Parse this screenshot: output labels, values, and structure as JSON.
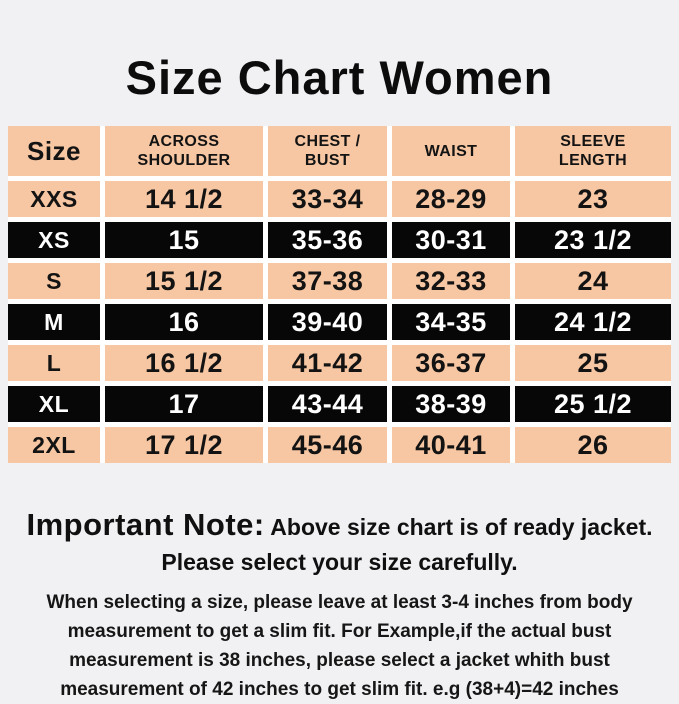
{
  "page": {
    "title": "Size Chart Women",
    "background_color": "#f1f1f4",
    "peach_color": "#f7c7a3",
    "dark_row_color": "#070707"
  },
  "table": {
    "columns": [
      "Size",
      "ACROSS SHOULDER",
      "CHEST / BUST",
      "WAIST",
      "SLEEVE LENGTH"
    ],
    "rows": [
      {
        "variant": "peach",
        "cells": [
          "XXS",
          "14 1/2",
          "33-34",
          "28-29",
          "23"
        ]
      },
      {
        "variant": "black",
        "cells": [
          "XS",
          "15",
          "35-36",
          "30-31",
          "23 1/2"
        ]
      },
      {
        "variant": "peach",
        "cells": [
          "S",
          "15 1/2",
          "37-38",
          "32-33",
          "24"
        ]
      },
      {
        "variant": "black",
        "cells": [
          "M",
          "16",
          "39-40",
          "34-35",
          "24 1/2"
        ]
      },
      {
        "variant": "peach",
        "cells": [
          "L",
          "16 1/2",
          "41-42",
          "36-37",
          "25"
        ]
      },
      {
        "variant": "black",
        "cells": [
          "XL",
          "17",
          "43-44",
          "38-39",
          "25 1/2"
        ]
      },
      {
        "variant": "peach",
        "cells": [
          "2XL",
          "17 1/2",
          "45-46",
          "40-41",
          "26"
        ]
      }
    ]
  },
  "note": {
    "heading": "Important Note:",
    "lead": "Above size chart is of ready jacket.",
    "lead2": "Please select your size carefully.",
    "body_lines": [
      "When selecting a size, please leave at least 3-4 inches from body",
      "measurement to get a slim fit. For Example,if the actual bust",
      "measurement is 38 inches, please select a jacket whith bust",
      "measurement of 42 inches to get slim fit. e.g (38+4)=42 inches"
    ]
  }
}
